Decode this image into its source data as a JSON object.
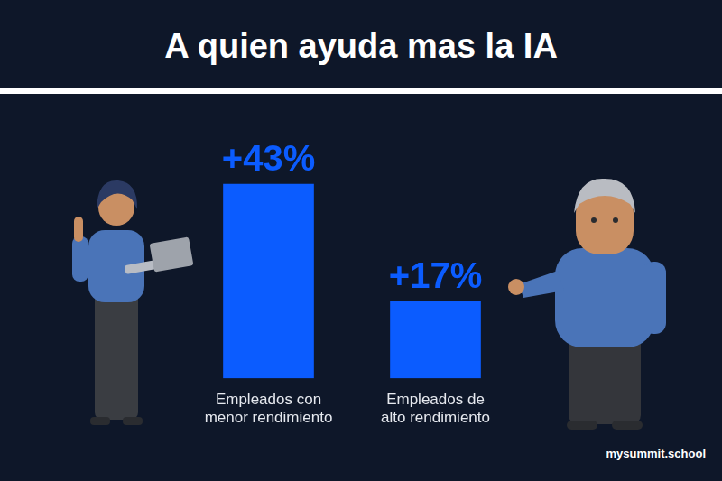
{
  "chart_data": {
    "type": "bar",
    "title": "A quien ayuda mas la IA",
    "categories": [
      "Empleados con menor rendimiento",
      "Empleados de alto rendimiento"
    ],
    "values": [
      43,
      17
    ],
    "value_labels": [
      "+43%",
      "+17%"
    ],
    "color": "#0b5cff",
    "ylim": [
      0,
      50
    ],
    "grid": false,
    "data_labels": true,
    "tick_labels": "x",
    "annotations": [
      "mysummit.school"
    ]
  }
}
